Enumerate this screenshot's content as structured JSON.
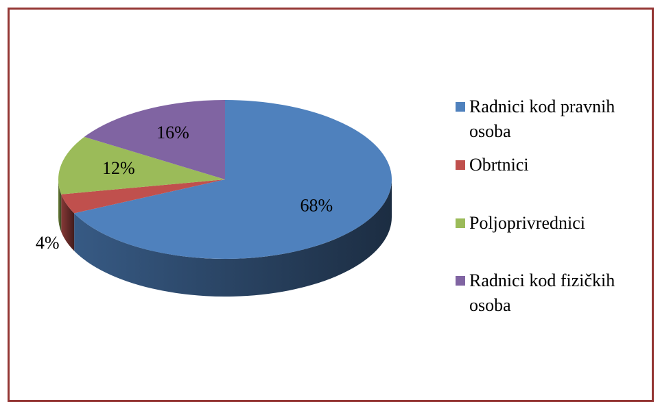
{
  "chart_data": {
    "type": "pie",
    "categories": [
      "Radnici kod pravnih osoba",
      "Obrtnici",
      "Poljoprivrednici",
      "Radnici kod fizičkih osoba"
    ],
    "values": [
      68,
      4,
      12,
      16
    ],
    "value_labels": [
      "68%",
      "4%",
      "12%",
      "16%"
    ],
    "colors": [
      "#4f81bd",
      "#c0504d",
      "#9bbb59",
      "#8064a2"
    ],
    "legend": "right"
  }
}
